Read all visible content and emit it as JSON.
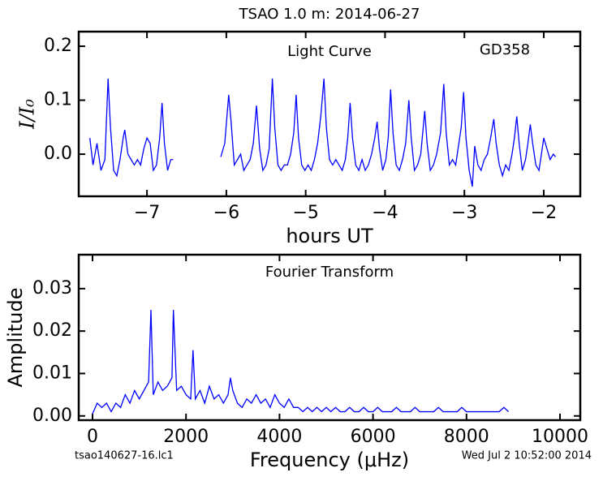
{
  "title": "TSAO 1.0 m:  2014-06-27",
  "footer_left": "tsao140627-16.lc1",
  "footer_right": "Wed Jul  2 10:52:00 2014",
  "chart_data": [
    {
      "type": "line",
      "annotations": [
        "Light Curve",
        "GD358"
      ],
      "x_label": "hours UT",
      "y_label": "I/I₀",
      "xlim": [
        -7.86,
        -1.54
      ],
      "ylim": [
        -0.078,
        0.227
      ],
      "xticks": [
        {
          "value": -7,
          "label": "−7"
        },
        {
          "value": -6,
          "label": "−6"
        },
        {
          "value": -5,
          "label": "−5"
        },
        {
          "value": -4,
          "label": "−4"
        },
        {
          "value": -3,
          "label": "−3"
        },
        {
          "value": -2,
          "label": "−2"
        }
      ],
      "yticks": [
        {
          "value": 0,
          "label": "0.0"
        },
        0.1,
        0.2
      ],
      "grid": false,
      "x": [
        -7.72,
        -7.68,
        -7.63,
        -7.58,
        -7.53,
        -7.49,
        -7.46,
        -7.42,
        -7.38,
        -7.34,
        -7.3,
        -7.28,
        -7.24,
        -7.2,
        -7.16,
        -7.12,
        -7.08,
        -7.04,
        -7.0,
        -6.96,
        -6.92,
        -6.88,
        -6.84,
        -6.81,
        -6.78,
        -6.74,
        -6.7,
        -6.67,
        -6.4,
        -6.07,
        -6.02,
        -5.97,
        -5.94,
        -5.9,
        -5.86,
        -5.82,
        -5.78,
        -5.74,
        -5.7,
        -5.66,
        -5.62,
        -5.58,
        -5.54,
        -5.5,
        -5.46,
        -5.42,
        -5.39,
        -5.35,
        -5.31,
        -5.27,
        -5.23,
        -5.19,
        -5.15,
        -5.12,
        -5.09,
        -5.05,
        -5.01,
        -4.97,
        -4.93,
        -4.89,
        -4.85,
        -4.81,
        -4.77,
        -4.74,
        -4.7,
        -4.66,
        -4.62,
        -4.58,
        -4.54,
        -4.5,
        -4.47,
        -4.44,
        -4.41,
        -4.37,
        -4.33,
        -4.29,
        -4.25,
        -4.21,
        -4.17,
        -4.13,
        -4.1,
        -4.07,
        -4.03,
        -3.99,
        -3.96,
        -3.93,
        -3.9,
        -3.86,
        -3.82,
        -3.78,
        -3.74,
        -3.7,
        -3.67,
        -3.63,
        -3.59,
        -3.55,
        -3.5,
        -3.47,
        -3.43,
        -3.39,
        -3.35,
        -3.3,
        -3.26,
        -3.23,
        -3.19,
        -3.15,
        -3.11,
        -3.07,
        -3.04,
        -3.01,
        -2.98,
        -2.94,
        -2.9,
        -2.87,
        -2.83,
        -2.79,
        -2.75,
        -2.71,
        -2.67,
        -2.63,
        -2.6,
        -2.56,
        -2.52,
        -2.48,
        -2.44,
        -2.4,
        -2.37,
        -2.34,
        -2.31,
        -2.27,
        -2.23,
        -2.2,
        -2.17,
        -2.14,
        -2.1,
        -2.06,
        -2.03,
        -2.0,
        -1.96,
        -1.92,
        -1.88,
        -1.85
      ],
      "series": [
        {
          "color": "#0000ff",
          "values": [
            0.03,
            -0.02,
            0.02,
            -0.03,
            -0.01,
            0.14,
            0.05,
            -0.03,
            -0.04,
            -0.01,
            0.03,
            0.045,
            0.0,
            -0.01,
            -0.02,
            -0.01,
            -0.02,
            0.01,
            0.03,
            0.02,
            -0.03,
            -0.02,
            0.03,
            0.095,
            0.02,
            -0.03,
            -0.01,
            -0.01,
            null,
            -0.005,
            0.02,
            0.11,
            0.06,
            -0.02,
            -0.01,
            0.0,
            -0.03,
            -0.02,
            -0.01,
            0.02,
            0.09,
            0.01,
            -0.03,
            -0.02,
            0.01,
            0.14,
            0.05,
            -0.02,
            -0.03,
            -0.02,
            -0.02,
            0.0,
            0.04,
            0.11,
            0.03,
            -0.02,
            -0.03,
            -0.02,
            -0.03,
            -0.01,
            0.02,
            0.07,
            0.14,
            0.05,
            -0.01,
            -0.02,
            -0.01,
            -0.02,
            -0.03,
            -0.01,
            0.03,
            0.095,
            0.03,
            -0.02,
            -0.03,
            -0.01,
            -0.03,
            -0.02,
            0.0,
            0.03,
            0.06,
            0.01,
            -0.03,
            -0.01,
            0.03,
            0.12,
            0.04,
            -0.02,
            -0.03,
            -0.01,
            0.02,
            0.1,
            0.03,
            -0.03,
            -0.02,
            0.0,
            0.08,
            0.02,
            -0.03,
            -0.02,
            0.0,
            0.04,
            0.13,
            0.04,
            -0.02,
            -0.01,
            -0.02,
            0.02,
            0.05,
            0.115,
            0.03,
            -0.03,
            -0.06,
            0.015,
            -0.02,
            -0.03,
            -0.01,
            0.0,
            0.03,
            0.065,
            0.02,
            -0.02,
            -0.04,
            -0.02,
            -0.03,
            0.0,
            0.03,
            0.07,
            0.02,
            -0.03,
            -0.01,
            0.02,
            0.055,
            0.02,
            -0.02,
            -0.03,
            0.0,
            0.03,
            0.01,
            -0.01,
            0.0,
            -0.005
          ]
        }
      ]
    },
    {
      "type": "line",
      "annotations": [
        "Fourier Transform"
      ],
      "x_label": "Frequency (μHz)",
      "y_label": "Amplitude",
      "xlim": [
        -295,
        10434
      ],
      "ylim": [
        -0.001,
        0.038
      ],
      "xticks": [
        0,
        2000,
        4000,
        6000,
        8000,
        10000
      ],
      "yticks": [
        {
          "value": 0,
          "label": "0.00"
        },
        {
          "value": 0.01,
          "label": "0.01"
        },
        {
          "value": 0.02,
          "label": "0.02"
        },
        {
          "value": 0.03,
          "label": "0.03"
        }
      ],
      "grid": false,
      "x": [
        0,
        100,
        200,
        300,
        400,
        500,
        600,
        700,
        800,
        900,
        1000,
        1100,
        1200,
        1250,
        1300,
        1400,
        1500,
        1600,
        1700,
        1730,
        1800,
        1900,
        2000,
        2100,
        2150,
        2200,
        2300,
        2400,
        2500,
        2600,
        2700,
        2800,
        2900,
        2950,
        3000,
        3100,
        3200,
        3300,
        3400,
        3500,
        3600,
        3700,
        3800,
        3900,
        4000,
        4100,
        4200,
        4300,
        4400,
        4500,
        4600,
        4700,
        4800,
        4900,
        5000,
        5100,
        5200,
        5300,
        5400,
        5500,
        5600,
        5700,
        5800,
        5900,
        6000,
        6100,
        6200,
        6300,
        6400,
        6500,
        6600,
        6700,
        6800,
        6900,
        7000,
        7100,
        7200,
        7300,
        7400,
        7500,
        7600,
        7700,
        7800,
        7900,
        8000,
        8100,
        8200,
        8300,
        8400,
        8500,
        8600,
        8700,
        8800,
        8900
      ],
      "series": [
        {
          "color": "#0000ff",
          "values": [
            0.0005,
            0.003,
            0.002,
            0.003,
            0.001,
            0.003,
            0.002,
            0.005,
            0.003,
            0.006,
            0.004,
            0.006,
            0.008,
            0.025,
            0.005,
            0.008,
            0.006,
            0.007,
            0.009,
            0.025,
            0.006,
            0.007,
            0.005,
            0.004,
            0.0155,
            0.004,
            0.006,
            0.003,
            0.007,
            0.004,
            0.005,
            0.003,
            0.005,
            0.009,
            0.006,
            0.003,
            0.002,
            0.004,
            0.003,
            0.005,
            0.003,
            0.004,
            0.002,
            0.005,
            0.003,
            0.002,
            0.004,
            0.002,
            0.002,
            0.001,
            0.002,
            0.001,
            0.002,
            0.001,
            0.002,
            0.001,
            0.002,
            0.001,
            0.001,
            0.002,
            0.001,
            0.001,
            0.002,
            0.001,
            0.001,
            0.002,
            0.001,
            0.001,
            0.001,
            0.002,
            0.001,
            0.001,
            0.001,
            0.002,
            0.001,
            0.001,
            0.001,
            0.001,
            0.002,
            0.001,
            0.001,
            0.001,
            0.001,
            0.002,
            0.001,
            0.001,
            0.001,
            0.001,
            0.001,
            0.001,
            0.001,
            0.001,
            0.002,
            0.001
          ]
        }
      ]
    }
  ]
}
